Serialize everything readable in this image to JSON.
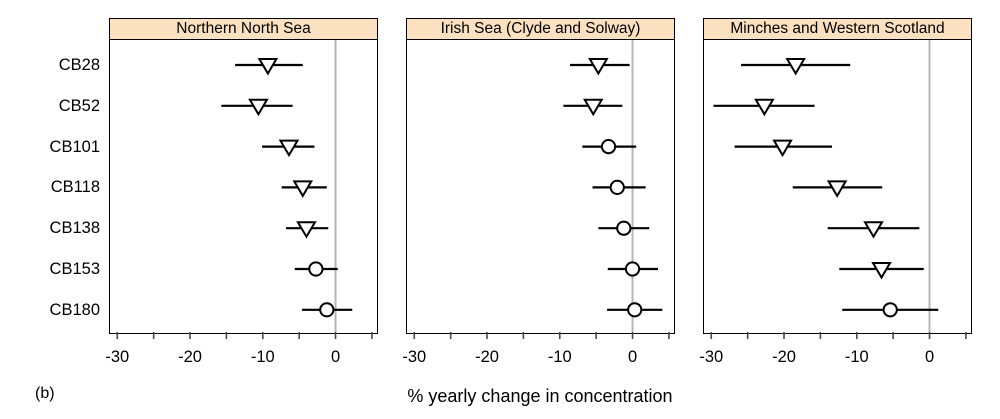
{
  "figure": {
    "panel_label": "(b)",
    "xlabel": "% yearly change in concentration"
  },
  "chart_data": {
    "type": "scatter",
    "subtype": "dotplot-with-error-bars",
    "title": "",
    "xlabel": "% yearly change in concentration",
    "ylabel": "",
    "categories": [
      "CB28",
      "CB52",
      "CB101",
      "CB118",
      "CB138",
      "CB153",
      "CB180"
    ],
    "xlim": [
      -31,
      5.7
    ],
    "xticks_labeled": [
      -30,
      -20,
      -10,
      0
    ],
    "xtick_labels": [
      "-30",
      "-20",
      "-10",
      "0"
    ],
    "xticks_minor": [
      -25,
      -15,
      -5,
      5
    ],
    "zero_reference_line": 0,
    "grid": "off",
    "legend": "none",
    "colors": {
      "strip_fill": "#fce1c0",
      "zero_line": "#b5b5b5",
      "marker_fill": "#ffffff",
      "marker_stroke": "#000000",
      "error_bar": "#000000",
      "tick": "#4a4a4a"
    },
    "panels": [
      {
        "title": "Northern North Sea",
        "points": [
          {
            "label": "CB28",
            "value": -9.3,
            "lo": -13.8,
            "hi": -4.5,
            "marker": "triangle-down"
          },
          {
            "label": "CB52",
            "value": -10.6,
            "lo": -15.7,
            "hi": -5.9,
            "marker": "triangle-down"
          },
          {
            "label": "CB101",
            "value": -6.4,
            "lo": -10.1,
            "hi": -2.9,
            "marker": "triangle-down"
          },
          {
            "label": "CB118",
            "value": -4.5,
            "lo": -7.4,
            "hi": -1.2,
            "marker": "triangle-down"
          },
          {
            "label": "CB138",
            "value": -4.0,
            "lo": -6.8,
            "hi": -1.0,
            "marker": "triangle-down"
          },
          {
            "label": "CB153",
            "value": -2.7,
            "lo": -5.6,
            "hi": 0.3,
            "marker": "circle"
          },
          {
            "label": "CB180",
            "value": -1.2,
            "lo": -4.6,
            "hi": 2.3,
            "marker": "circle"
          }
        ]
      },
      {
        "title": "Irish Sea (Clyde and Solway)",
        "points": [
          {
            "label": "CB28",
            "value": -4.7,
            "lo": -8.6,
            "hi": -0.4,
            "marker": "triangle-down"
          },
          {
            "label": "CB52",
            "value": -5.4,
            "lo": -9.5,
            "hi": -1.4,
            "marker": "triangle-down"
          },
          {
            "label": "CB101",
            "value": -3.3,
            "lo": -6.9,
            "hi": 0.5,
            "marker": "circle"
          },
          {
            "label": "CB118",
            "value": -2.1,
            "lo": -5.5,
            "hi": 1.8,
            "marker": "circle"
          },
          {
            "label": "CB138",
            "value": -1.2,
            "lo": -4.7,
            "hi": 2.3,
            "marker": "circle"
          },
          {
            "label": "CB153",
            "value": 0.0,
            "lo": -3.4,
            "hi": 3.5,
            "marker": "circle"
          },
          {
            "label": "CB180",
            "value": 0.3,
            "lo": -3.5,
            "hi": 4.1,
            "marker": "circle"
          }
        ]
      },
      {
        "title": "Minches and Western Scotland",
        "points": [
          {
            "label": "CB28",
            "value": -18.4,
            "lo": -25.9,
            "hi": -10.9,
            "marker": "triangle-down"
          },
          {
            "label": "CB52",
            "value": -22.7,
            "lo": -29.7,
            "hi": -15.8,
            "marker": "triangle-down"
          },
          {
            "label": "CB101",
            "value": -20.2,
            "lo": -26.8,
            "hi": -13.4,
            "marker": "triangle-down"
          },
          {
            "label": "CB118",
            "value": -12.7,
            "lo": -18.8,
            "hi": -6.5,
            "marker": "triangle-down"
          },
          {
            "label": "CB138",
            "value": -7.7,
            "lo": -14.0,
            "hi": -1.4,
            "marker": "triangle-down"
          },
          {
            "label": "CB153",
            "value": -6.6,
            "lo": -12.4,
            "hi": -0.8,
            "marker": "triangle-down"
          },
          {
            "label": "CB180",
            "value": -5.4,
            "lo": -12.0,
            "hi": 1.2,
            "marker": "circle"
          }
        ]
      }
    ]
  }
}
